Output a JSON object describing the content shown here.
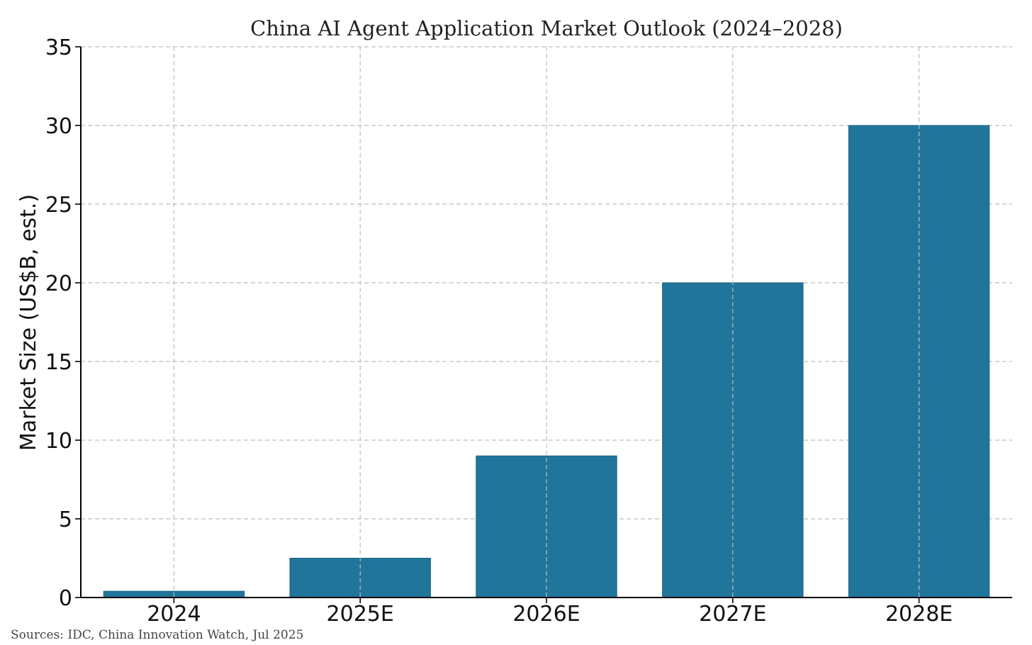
{
  "chart_data": {
    "type": "bar",
    "title": "China AI Agent Application Market Outlook (2024–2028)",
    "xlabel": "",
    "ylabel": "Market Size (US$B, est.)",
    "categories": [
      "2024",
      "2025E",
      "2026E",
      "2027E",
      "2028E"
    ],
    "values": [
      0.4,
      2.5,
      9,
      20,
      30
    ],
    "ylim": [
      0,
      35
    ],
    "yticks": [
      0,
      5,
      10,
      15,
      20,
      25,
      30,
      35
    ],
    "grid": true,
    "bar_color": "#21759b",
    "source": "Sources: IDC, China Innovation Watch, Jul 2025"
  }
}
